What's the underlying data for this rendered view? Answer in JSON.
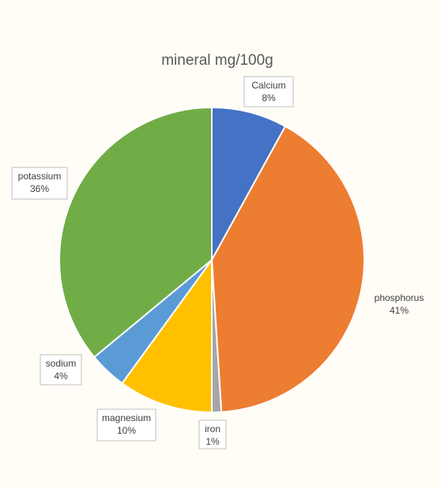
{
  "chart_data": {
    "type": "pie",
    "title": "mineral mg/100g",
    "slices": [
      {
        "label": "Calcium",
        "value": 8,
        "display": "8%",
        "color": "#4472c4"
      },
      {
        "label": "phosphorus",
        "value": 41,
        "display": "41%",
        "color": "#ed7d31"
      },
      {
        "label": "iron",
        "value": 1,
        "display": "1%",
        "color": "#a5a5a5"
      },
      {
        "label": "magnesium",
        "value": 10,
        "display": "10%",
        "color": "#ffc000"
      },
      {
        "label": "sodium",
        "value": 4,
        "display": "4%",
        "color": "#5b9bd5"
      },
      {
        "label": "potassium",
        "value": 36,
        "display": "36%",
        "color": "#70ad47"
      }
    ],
    "start": "top",
    "direction": "clockwise",
    "legend": "none",
    "data_labels": "callouts"
  }
}
